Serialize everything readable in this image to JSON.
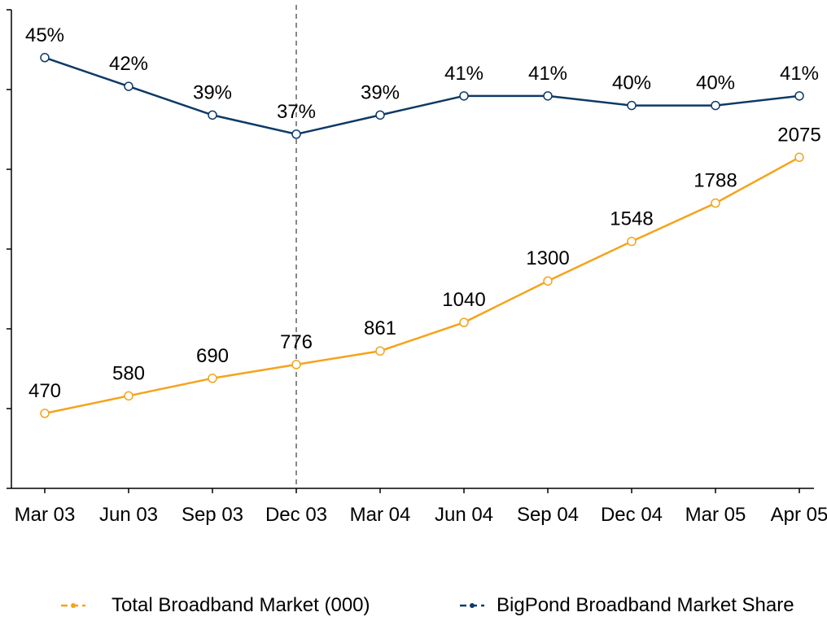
{
  "chart_data": {
    "type": "line",
    "categories": [
      "Mar 03",
      "Jun 03",
      "Sep 03",
      "Dec 03",
      "Mar 04",
      "Jun 04",
      "Sep 04",
      "Dec 04",
      "Mar 05",
      "Apr 05"
    ],
    "series": [
      {
        "name": "Total Broadband Market (000)",
        "color": "#f5a31a",
        "values": [
          470,
          580,
          690,
          776,
          861,
          1040,
          1300,
          1548,
          1788,
          2075
        ]
      },
      {
        "name": "BigPond Broadband Market Share",
        "color": "#0d3a66",
        "axis": "y2",
        "values": [
          45,
          42,
          39,
          37,
          39,
          41,
          41,
          40,
          40,
          41
        ],
        "value_labels": [
          "45%",
          "42%",
          "39%",
          "37%",
          "39%",
          "41%",
          "41%",
          "40%",
          "40%",
          "41%"
        ]
      }
    ],
    "ylim": [
      0,
      3000
    ],
    "yticks": [
      0,
      500,
      1000,
      1500,
      2000,
      2500,
      3000
    ],
    "y2lim": [
      0,
      50
    ],
    "legend": "bottom"
  }
}
